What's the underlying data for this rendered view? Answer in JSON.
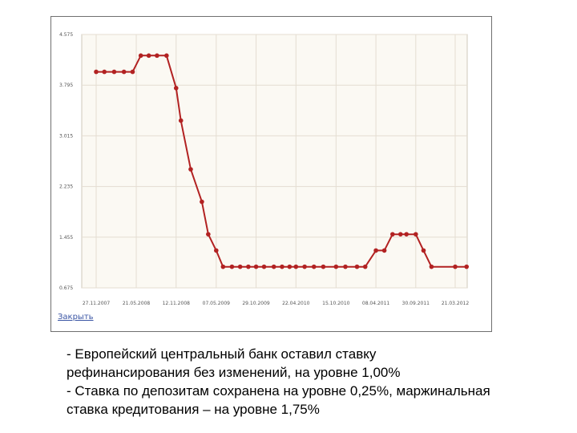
{
  "chart_data": {
    "type": "line",
    "x": [
      "27.11.2007",
      "02.01.2008",
      "14.02.2008",
      "28.03.2008",
      "05.05.2008",
      "10.06.2008",
      "15.07.2008",
      "20.08.2008",
      "01.10.2008",
      "12.11.2008",
      "03.12.2008",
      "15.01.2009",
      "05.03.2009",
      "02.04.2009",
      "07.05.2009",
      "06.06.2009",
      "15.07.2009",
      "20.08.2009",
      "25.09.2009",
      "29.10.2009",
      "03.12.2009",
      "15.01.2010",
      "20.02.2010",
      "25.03.2010",
      "22.04.2010",
      "30.05.2010",
      "10.07.2010",
      "20.08.2010",
      "15.10.2010",
      "25.11.2010",
      "15.01.2011",
      "20.02.2011",
      "08.04.2011",
      "15.05.2011",
      "20.06.2011",
      "25.07.2011",
      "20.08.2011",
      "30.09.2011",
      "03.11.2011",
      "08.12.2011",
      "21.03.2012",
      "10.05.2012"
    ],
    "y": [
      4.0,
      4.0,
      4.0,
      4.0,
      4.0,
      4.25,
      4.25,
      4.25,
      4.25,
      3.75,
      3.25,
      2.5,
      2.0,
      1.5,
      1.25,
      1.0,
      1.0,
      1.0,
      1.0,
      1.0,
      1.0,
      1.0,
      1.0,
      1.0,
      1.0,
      1.0,
      1.0,
      1.0,
      1.0,
      1.0,
      1.0,
      1.0,
      1.25,
      1.25,
      1.5,
      1.5,
      1.5,
      1.5,
      1.25,
      1.0,
      1.0,
      1.0
    ],
    "ylim": [
      0.675,
      4.575
    ],
    "yticks": [
      "4.575",
      "3.795",
      "3.015",
      "2.235",
      "1.455",
      "0.675"
    ],
    "xticks": [
      "27.11.2007",
      "21.05.2008",
      "12.11.2008",
      "07.05.2009",
      "29.10.2009",
      "22.04.2010",
      "15.10.2010",
      "08.04.2011",
      "30.09.2011",
      "21.03.2012"
    ],
    "grid": true,
    "colors": {
      "line": "#b22222",
      "grid": "#e4ddd2",
      "plot_bg": "#fbf9f3"
    }
  },
  "panel": {
    "close_label": "Закрыть"
  },
  "caption": [
    "- Европейский центральный банк оставил ставку",
    "рефинансирования без изменений, на уровне 1,00%",
    "- Ставка по депозитам сохранена на уровне 0,25%, маржинальная",
    "ставка кредитования – на уровне 1,75%"
  ]
}
